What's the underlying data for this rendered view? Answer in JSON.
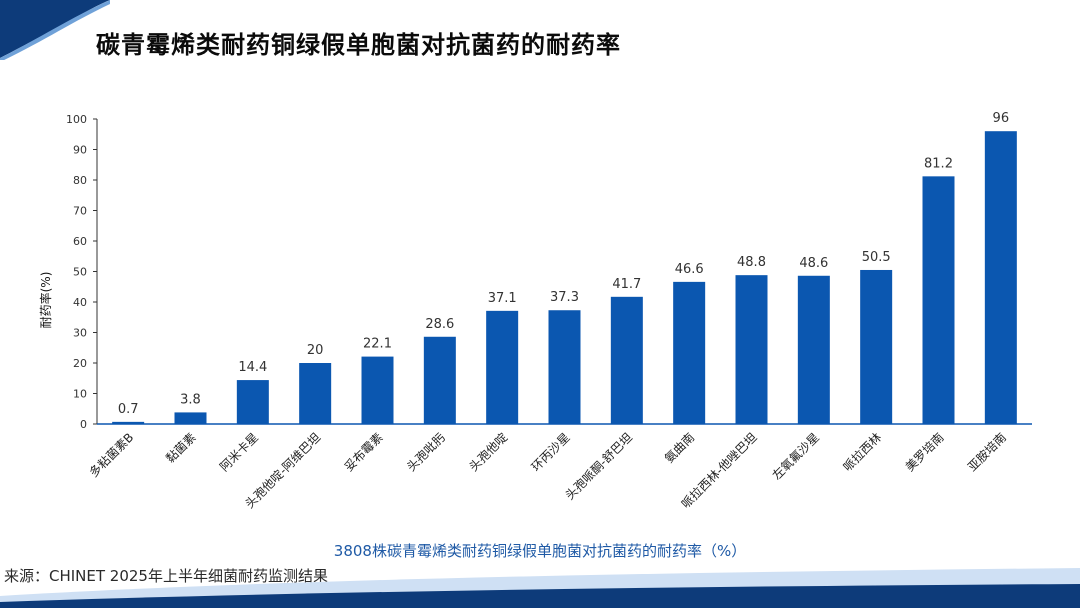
{
  "slide": {
    "title": "碳青霉烯类耐药铜绿假单胞菌对抗菌药的耐药率",
    "source": "来源：CHINET 2025年上半年细菌耐药监测结果"
  },
  "colors": {
    "bar": "#0b57b0",
    "accent_dark": "#0d3b7a",
    "accent_light": "#cfe0f4",
    "subtitle": "#1f5aa6"
  },
  "chart_data": {
    "type": "bar",
    "title": "3808株碳青霉烯类耐药铜绿假单胞菌对抗菌药的耐药率（%）",
    "ylabel": "耐药率(%)",
    "xlabel": "",
    "ylim": [
      0,
      100
    ],
    "yticks": [
      0,
      10,
      20,
      30,
      40,
      50,
      60,
      70,
      80,
      90,
      100
    ],
    "categories": [
      "多粘菌素B",
      "黏菌素",
      "阿米卡星",
      "头孢他啶-阿维巴坦",
      "妥布霉素",
      "头孢吡肟",
      "头孢他啶",
      "环丙沙星",
      "头孢哌酮-舒巴坦",
      "氨曲南",
      "哌拉西林-他唑巴坦",
      "左氧氟沙星",
      "哌拉西林",
      "美罗培南",
      "亚胺培南"
    ],
    "values": [
      0.7,
      3.8,
      14.4,
      20,
      22.1,
      28.6,
      37.1,
      37.3,
      41.7,
      46.6,
      48.8,
      48.6,
      50.5,
      81.2,
      96
    ],
    "value_labels": [
      "0.7",
      "3.8",
      "14.4",
      "20",
      "22.1",
      "28.6",
      "37.1",
      "37.3",
      "41.7",
      "46.6",
      "48.8",
      "48.6",
      "50.5",
      "81.2",
      "96"
    ],
    "grid": false,
    "legend": "none"
  }
}
